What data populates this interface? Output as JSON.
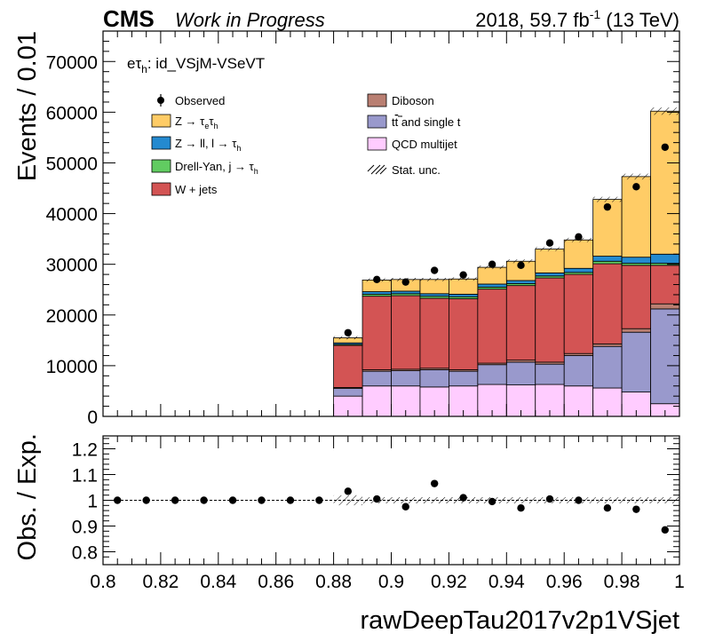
{
  "header": {
    "experiment": "CMS",
    "status": "Work in Progress",
    "lumi_pre": "2018, 59.7 fb",
    "lumi_sup": "-1",
    "lumi_post": " (13 TeV)"
  },
  "channel": {
    "base": "eτ",
    "sub": "h",
    "rest": ": id_VSjM-VSeVT"
  },
  "legend": {
    "observed": "Observed",
    "ztt": {
      "pre": "Z → τ",
      "s1": "e",
      "mid": "τ",
      "s2": "h"
    },
    "zll": {
      "pre": "Z → ll, l → τ",
      "s1": "h"
    },
    "dy": {
      "pre": "Drell-Yan, j → τ",
      "s1": "h"
    },
    "wjets": "W + jets",
    "diboson": "Diboson",
    "ttbar": {
      "pre": "t",
      "bar": "t",
      "post": " and single t"
    },
    "qcd": "QCD multijet",
    "stat": "Stat. unc."
  },
  "colors": {
    "ztt": "#ffcc66",
    "zll": "#248ad0",
    "dy": "#61cc61",
    "wjets": "#d35454",
    "diboson": "#b97f72",
    "ttbar": "#9999cc",
    "qcd": "#ffccff"
  },
  "chart_data": {
    "type": "bar",
    "subtype": "stacked-histogram-with-ratio",
    "xlabel": "rawDeepTau2017v2p1VSjet",
    "ylabel": "Events / 0.01",
    "ratio_ylabel": "Obs. / Exp.",
    "x_edges": [
      0.8,
      0.81,
      0.82,
      0.83,
      0.84,
      0.85,
      0.86,
      0.87,
      0.88,
      0.89,
      0.9,
      0.91,
      0.92,
      0.93,
      0.94,
      0.95,
      0.96,
      0.97,
      0.98,
      0.99,
      1.0
    ],
    "xlim": [
      0.8,
      1.0
    ],
    "ylim": [
      0,
      76000
    ],
    "ratio_ylim": [
      0.75,
      1.25
    ],
    "x_ticks": [
      "0.8",
      "0.82",
      "0.84",
      "0.86",
      "0.88",
      "0.9",
      "0.92",
      "0.94",
      "0.96",
      "0.98",
      "1"
    ],
    "y_ticks": [
      "0",
      "10000",
      "20000",
      "30000",
      "40000",
      "50000",
      "60000",
      "70000"
    ],
    "ratio_y_ticks": [
      "0.8",
      "0.9",
      "1",
      "1.1",
      "1.2"
    ],
    "series": [
      {
        "name": "QCD multijet",
        "key": "qcd",
        "values": [
          0,
          0,
          0,
          0,
          0,
          0,
          0,
          0,
          4000,
          6000,
          6000,
          5800,
          6000,
          6300,
          6200,
          6300,
          6000,
          5600,
          4800,
          2500
        ]
      },
      {
        "name": "tt̄ and single t",
        "key": "ttbar",
        "values": [
          0,
          0,
          0,
          0,
          0,
          0,
          0,
          0,
          1500,
          2900,
          3000,
          3400,
          2900,
          3900,
          4500,
          4000,
          6000,
          8200,
          11800,
          18700
        ]
      },
      {
        "name": "Diboson",
        "key": "diboson",
        "values": [
          0,
          0,
          0,
          0,
          0,
          0,
          0,
          0,
          200,
          300,
          300,
          300,
          300,
          300,
          400,
          400,
          400,
          500,
          700,
          1000
        ]
      },
      {
        "name": "W + jets",
        "key": "wjets",
        "values": [
          0,
          0,
          0,
          0,
          0,
          0,
          0,
          0,
          8300,
          14500,
          14500,
          13800,
          14000,
          14600,
          14700,
          16600,
          15600,
          15800,
          12500,
          7600
        ]
      },
      {
        "name": "Drell-Yan, j → τh",
        "key": "dy",
        "values": [
          0,
          0,
          0,
          0,
          0,
          0,
          0,
          0,
          200,
          400,
          400,
          400,
          400,
          400,
          400,
          400,
          400,
          500,
          400,
          400
        ]
      },
      {
        "name": "Z → ll, l → τh",
        "key": "zll",
        "values": [
          0,
          0,
          0,
          0,
          0,
          0,
          0,
          0,
          300,
          500,
          500,
          500,
          500,
          600,
          600,
          600,
          800,
          1000,
          1200,
          1800
        ]
      },
      {
        "name": "Z → τeτh",
        "key": "ztt",
        "values": [
          0,
          0,
          0,
          0,
          0,
          0,
          0,
          0,
          1000,
          2300,
          2300,
          2800,
          3000,
          3300,
          3800,
          4700,
          5600,
          11200,
          15900,
          28200
        ]
      }
    ],
    "observed": {
      "name": "Observed",
      "values": [
        0,
        0,
        0,
        0,
        0,
        0,
        0,
        0,
        16500,
        27000,
        26500,
        28800,
        27900,
        30000,
        29800,
        34200,
        35400,
        41300,
        45300,
        53100
      ]
    },
    "ratio": [
      1.0,
      1.0,
      1.0,
      1.0,
      1.0,
      1.0,
      1.0,
      1.0,
      1.035,
      1.005,
      0.975,
      1.065,
      1.01,
      0.995,
      0.97,
      1.005,
      1.0,
      0.97,
      0.965,
      0.885
    ]
  }
}
